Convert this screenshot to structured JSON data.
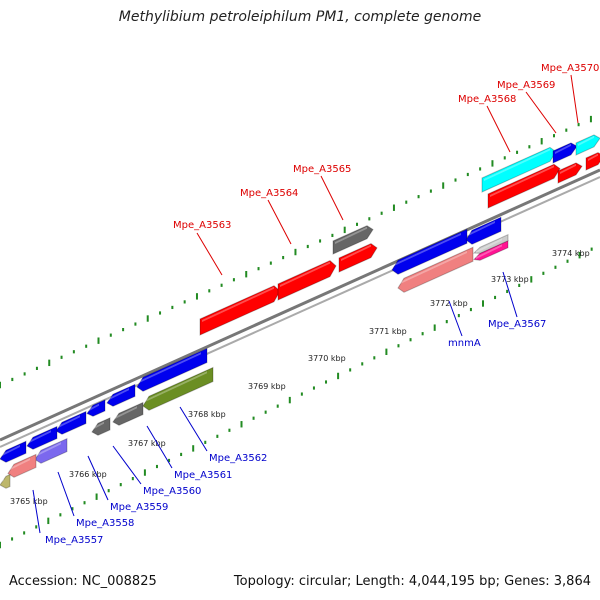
{
  "title": "Methylibium petroleiphilum PM1, complete genome",
  "footer": {
    "accession": "Accession: NC_008825",
    "topology": "Topology: circular; Length: 4,044,195 bp; Genes: 3,864"
  },
  "colors": {
    "forward_label": "#dd0000",
    "reverse_label": "#0000cc",
    "tick_forward": "#228b22",
    "tick_reverse": "#228b22",
    "backbone": "#888888",
    "red": "#ff0000",
    "blue": "#0000ee",
    "cyan": "#00ffff",
    "gray": "#666666",
    "olive": "#6b8e23",
    "pink": "#f08080",
    "magenta": "#ff1493",
    "lavender": "#7b68ee",
    "khaki": "#bdb76b",
    "silver": "#cccccc"
  },
  "kbp_labels": [
    "3765 kbp",
    "3766 kbp",
    "3767 kbp",
    "3768 kbp",
    "3769 kbp",
    "3770 kbp",
    "3771 kbp",
    "3772 kbp",
    "3773 kbp",
    "3774 kbp"
  ],
  "genes_forward": [
    {
      "name": "Mpe_A3563"
    },
    {
      "name": "Mpe_A3564"
    },
    {
      "name": "Mpe_A3565"
    },
    {
      "name": "Mpe_A3568"
    },
    {
      "name": "Mpe_A3569"
    },
    {
      "name": "Mpe_A3570"
    }
  ],
  "genes_reverse": [
    {
      "name": "Mpe_A3557"
    },
    {
      "name": "Mpe_A3558"
    },
    {
      "name": "Mpe_A3559"
    },
    {
      "name": "Mpe_A3560"
    },
    {
      "name": "Mpe_A3561"
    },
    {
      "name": "Mpe_A3562"
    },
    {
      "name": "mnmA"
    },
    {
      "name": "Mpe_A3567"
    }
  ]
}
